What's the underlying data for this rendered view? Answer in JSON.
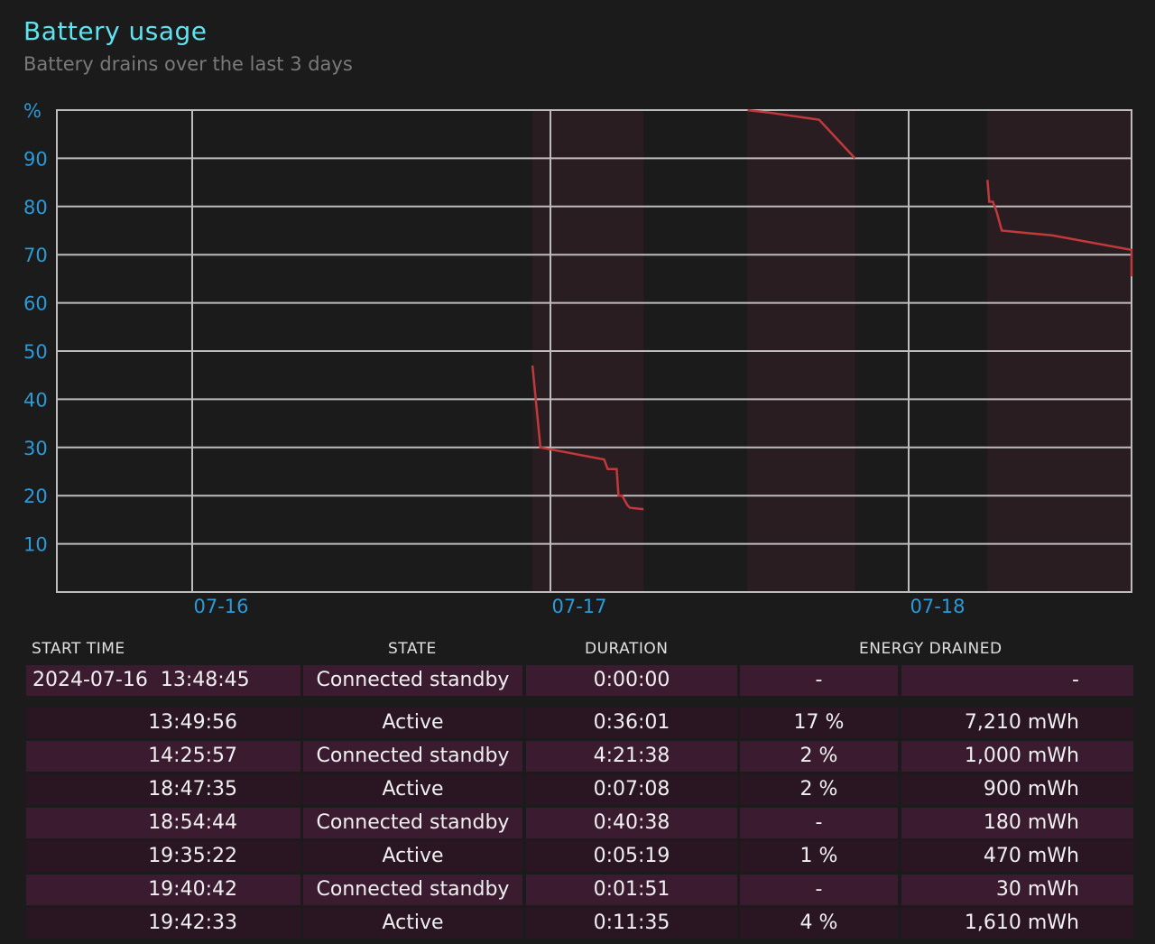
{
  "header": {
    "title": "Battery usage",
    "subtitle": "Battery drains over the last 3 days"
  },
  "colors": {
    "title": "#5fe3ef",
    "axis_labels": "#2a9bd8",
    "grid": "#bdbdbd",
    "drain_line": "#c0393b",
    "shaded_band": "#2a1d22",
    "row_light": "#3b1b30",
    "row_dark": "#2a1622"
  },
  "chart_data": {
    "type": "line",
    "title": "",
    "xlabel": "",
    "ylabel": "%",
    "ylim": [
      0,
      100
    ],
    "yticks": [
      "10",
      "20",
      "30",
      "40",
      "50",
      "60",
      "70",
      "80",
      "90",
      "%"
    ],
    "xticks": [
      "07-16",
      "07-17",
      "07-18"
    ],
    "xlim_days": [
      0,
      3
    ],
    "grid": true,
    "shaded_periods_days": [
      [
        0.95,
        1.26
      ],
      [
        1.55,
        1.85
      ],
      [
        2.22,
        3.0
      ]
    ],
    "segments": [
      {
        "name": "",
        "x_days": [
          0.95,
          0.972,
          1.15,
          1.16,
          1.185,
          1.19,
          1.2,
          1.215,
          1.222,
          1.26
        ],
        "y": [
          47,
          30,
          27.5,
          25.5,
          25.5,
          20,
          20,
          18,
          17.5,
          17.2
        ]
      },
      {
        "name": "",
        "x_days": [
          1.55,
          1.61,
          1.75,
          1.85
        ],
        "y": [
          100,
          99.5,
          98,
          90
        ]
      },
      {
        "name": "",
        "x_days": [
          2.22,
          2.225,
          2.235,
          2.245,
          2.26,
          2.4,
          2.7,
          2.98,
          3.0
        ],
        "y": [
          85.5,
          81,
          81,
          79,
          75,
          74,
          71,
          68.5,
          65.5
        ]
      }
    ]
  },
  "table": {
    "columns": [
      "START TIME",
      "STATE",
      "DURATION",
      "ENERGY DRAINED"
    ],
    "rows": [
      {
        "time": "2024-07-16  13:48:45",
        "state": "Connected standby",
        "duration": "0:00:00",
        "pct": "-",
        "mwh": "-"
      },
      {
        "time": "13:49:56",
        "state": "Active",
        "duration": "0:36:01",
        "pct": "17 %",
        "mwh": "7,210 mWh"
      },
      {
        "time": "14:25:57",
        "state": "Connected standby",
        "duration": "4:21:38",
        "pct": "2 %",
        "mwh": "1,000 mWh"
      },
      {
        "time": "18:47:35",
        "state": "Active",
        "duration": "0:07:08",
        "pct": "2 %",
        "mwh": "900 mWh"
      },
      {
        "time": "18:54:44",
        "state": "Connected standby",
        "duration": "0:40:38",
        "pct": "-",
        "mwh": "180 mWh"
      },
      {
        "time": "19:35:22",
        "state": "Active",
        "duration": "0:05:19",
        "pct": "1 %",
        "mwh": "470 mWh"
      },
      {
        "time": "19:40:42",
        "state": "Connected standby",
        "duration": "0:01:51",
        "pct": "-",
        "mwh": "30 mWh"
      },
      {
        "time": "19:42:33",
        "state": "Active",
        "duration": "0:11:35",
        "pct": "4 %",
        "mwh": "1,610 mWh"
      }
    ]
  }
}
